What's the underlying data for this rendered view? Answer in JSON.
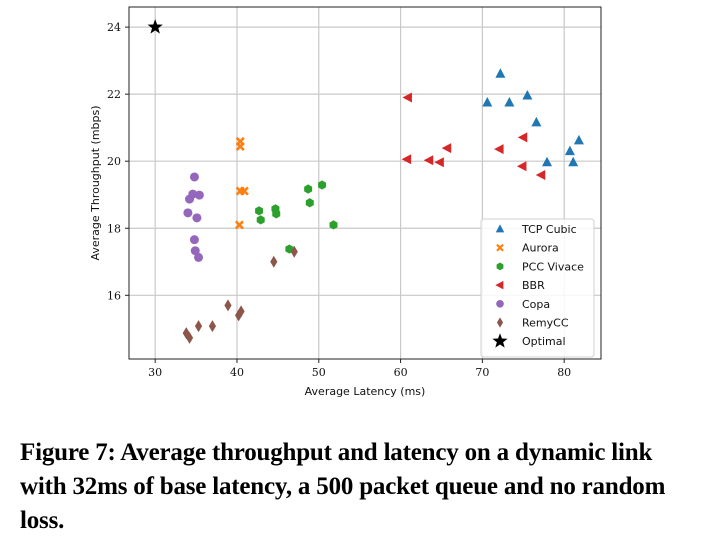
{
  "caption": "Figure 7: Average throughput and latency on a dynamic link with 32ms of base latency, a 500 packet queue and no random loss.",
  "chart_data": {
    "type": "scatter",
    "title": "",
    "xlabel": "Average Latency (ms)",
    "ylabel": "Average Throughput (mbps)",
    "xlim": [
      26.8,
      84.5
    ],
    "ylim": [
      14.1,
      24.6
    ],
    "xticks": [
      30,
      40,
      50,
      60,
      70,
      80
    ],
    "yticks": [
      16,
      18,
      20,
      22,
      24
    ],
    "grid": true,
    "legend_position": "lower-right",
    "series": [
      {
        "name": "TCP Cubic",
        "marker": "triangle-up",
        "color": "#1f77b4",
        "x": [
          72.2,
          70.6,
          73.3,
          75.5,
          76.6,
          81.8,
          80.7,
          77.9,
          81.1
        ],
        "y": [
          22.61,
          21.75,
          21.75,
          21.96,
          21.16,
          20.62,
          20.3,
          19.97,
          19.97
        ]
      },
      {
        "name": "Aurora",
        "marker": "x-filled",
        "color": "#ff7f0e",
        "x": [
          40.4,
          40.4,
          40.4,
          40.9,
          40.3
        ],
        "y": [
          20.59,
          20.44,
          19.11,
          19.11,
          18.1
        ]
      },
      {
        "name": "PCC Vivace",
        "marker": "hexagon",
        "color": "#2ca02c",
        "x": [
          48.7,
          50.4,
          48.9,
          42.7,
          44.7,
          44.8,
          42.9,
          51.8,
          46.4
        ],
        "y": [
          19.17,
          19.29,
          18.76,
          18.52,
          18.58,
          18.43,
          18.25,
          18.1,
          17.38
        ]
      },
      {
        "name": "BBR",
        "marker": "triangle-left",
        "color": "#d62728",
        "x": [
          60.9,
          60.8,
          63.5,
          64.8,
          65.7,
          75.0,
          72.1,
          74.9,
          77.2
        ],
        "y": [
          21.9,
          20.06,
          20.03,
          19.97,
          20.39,
          20.71,
          20.36,
          19.85,
          19.59
        ]
      },
      {
        "name": "Copa",
        "marker": "circle",
        "color": "#9467bd",
        "x": [
          34.8,
          34.6,
          35.4,
          34.2,
          34.0,
          35.1,
          34.8,
          34.9,
          35.3
        ],
        "y": [
          19.53,
          19.02,
          18.99,
          18.87,
          18.46,
          18.31,
          17.66,
          17.33,
          17.13
        ]
      },
      {
        "name": "RemyCC",
        "marker": "diamond",
        "color": "#8c564b",
        "x": [
          44.5,
          47.0,
          38.9,
          40.5,
          40.2,
          35.3,
          37.0,
          33.8,
          34.2
        ],
        "y": [
          17.0,
          17.3,
          15.7,
          15.52,
          15.4,
          15.08,
          15.08,
          14.87,
          14.73
        ]
      },
      {
        "name": "Optimal",
        "marker": "star",
        "color": "#000000",
        "x": [
          30.0
        ],
        "y": [
          24.0
        ]
      }
    ]
  }
}
